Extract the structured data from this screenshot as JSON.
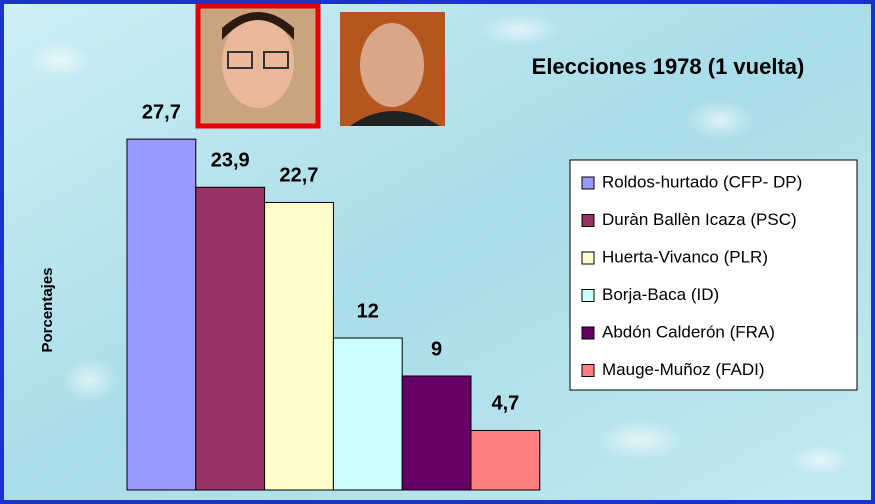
{
  "chart_data": {
    "type": "bar",
    "title": "Elecciones 1978 (1 vuelta)",
    "y_label": "Porcentajes",
    "categories": [
      "Roldos-hurtado (CFP- DP)",
      "Duràn Ballèn Icaza (PSC)",
      "Huerta-Vivanco (PLR)",
      "Borja-Baca (ID)",
      "Abdón Calderón (FRA)",
      "Mauge-Muñoz (FADI)"
    ],
    "values": [
      27.7,
      23.9,
      22.7,
      12,
      9,
      4.7
    ],
    "value_labels": [
      "27,7",
      "23,9",
      "22,7",
      "12",
      "9",
      "4,7"
    ],
    "colors": [
      "#9999ff",
      "#993366",
      "#ffffcc",
      "#ccffff",
      "#660066",
      "#ff8080"
    ],
    "ylim": [
      0,
      30
    ],
    "legend": "right"
  }
}
